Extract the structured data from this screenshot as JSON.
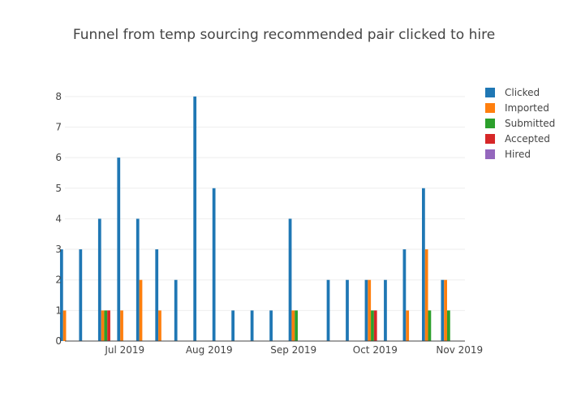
{
  "chart_data": {
    "type": "bar",
    "title": "Funnel from temp sourcing recommended pair clicked to hire",
    "xlabel": "",
    "ylabel": "",
    "ylim": [
      0,
      8.5
    ],
    "yticks": [
      0,
      1,
      2,
      3,
      4,
      5,
      6,
      7,
      8
    ],
    "xlim": [
      "2019-06-09",
      "2019-11-03"
    ],
    "xticks": [
      {
        "date": "2019-07-01",
        "label": "Jul 2019"
      },
      {
        "date": "2019-08-01",
        "label": "Aug 2019"
      },
      {
        "date": "2019-09-01",
        "label": "Sep 2019"
      },
      {
        "date": "2019-10-01",
        "label": "Oct 2019"
      },
      {
        "date": "2019-11-01",
        "label": "Nov 2019"
      }
    ],
    "grid": true,
    "legend_position": "top-right",
    "categories": [
      "2019-06-10",
      "2019-06-17",
      "2019-06-24",
      "2019-07-01",
      "2019-07-08",
      "2019-07-15",
      "2019-07-22",
      "2019-07-29",
      "2019-08-05",
      "2019-08-12",
      "2019-08-19",
      "2019-08-26",
      "2019-09-02",
      "2019-09-09",
      "2019-09-16",
      "2019-09-23",
      "2019-09-30",
      "2019-10-07",
      "2019-10-14",
      "2019-10-21",
      "2019-10-28"
    ],
    "series": [
      {
        "name": "Clicked",
        "color": "#1f77b4",
        "values": [
          3,
          3,
          4,
          6,
          4,
          3,
          2,
          8,
          5,
          1,
          1,
          1,
          4,
          0,
          2,
          2,
          2,
          2,
          3,
          5,
          2
        ]
      },
      {
        "name": "Imported",
        "color": "#ff7f0e",
        "values": [
          1,
          0,
          1,
          1,
          2,
          1,
          0,
          0,
          0,
          0,
          0,
          0,
          1,
          0,
          0,
          0,
          2,
          0,
          1,
          3,
          2
        ]
      },
      {
        "name": "Submitted",
        "color": "#2ca02c",
        "values": [
          0,
          0,
          1,
          0,
          0,
          0,
          0,
          0,
          0,
          0,
          0,
          0,
          1,
          0,
          0,
          0,
          1,
          0,
          0,
          1,
          1
        ]
      },
      {
        "name": "Accepted",
        "color": "#d62728",
        "values": [
          0,
          0,
          1,
          0,
          0,
          0,
          0,
          0,
          0,
          0,
          0,
          0,
          0,
          0,
          0,
          0,
          1,
          0,
          0,
          0,
          0
        ]
      },
      {
        "name": "Hired",
        "color": "#9467bd",
        "values": [
          0,
          0,
          0,
          0,
          0,
          0,
          0,
          0,
          0,
          0,
          0,
          0,
          0,
          0,
          0,
          0,
          0,
          0,
          0,
          0,
          0
        ]
      }
    ]
  }
}
